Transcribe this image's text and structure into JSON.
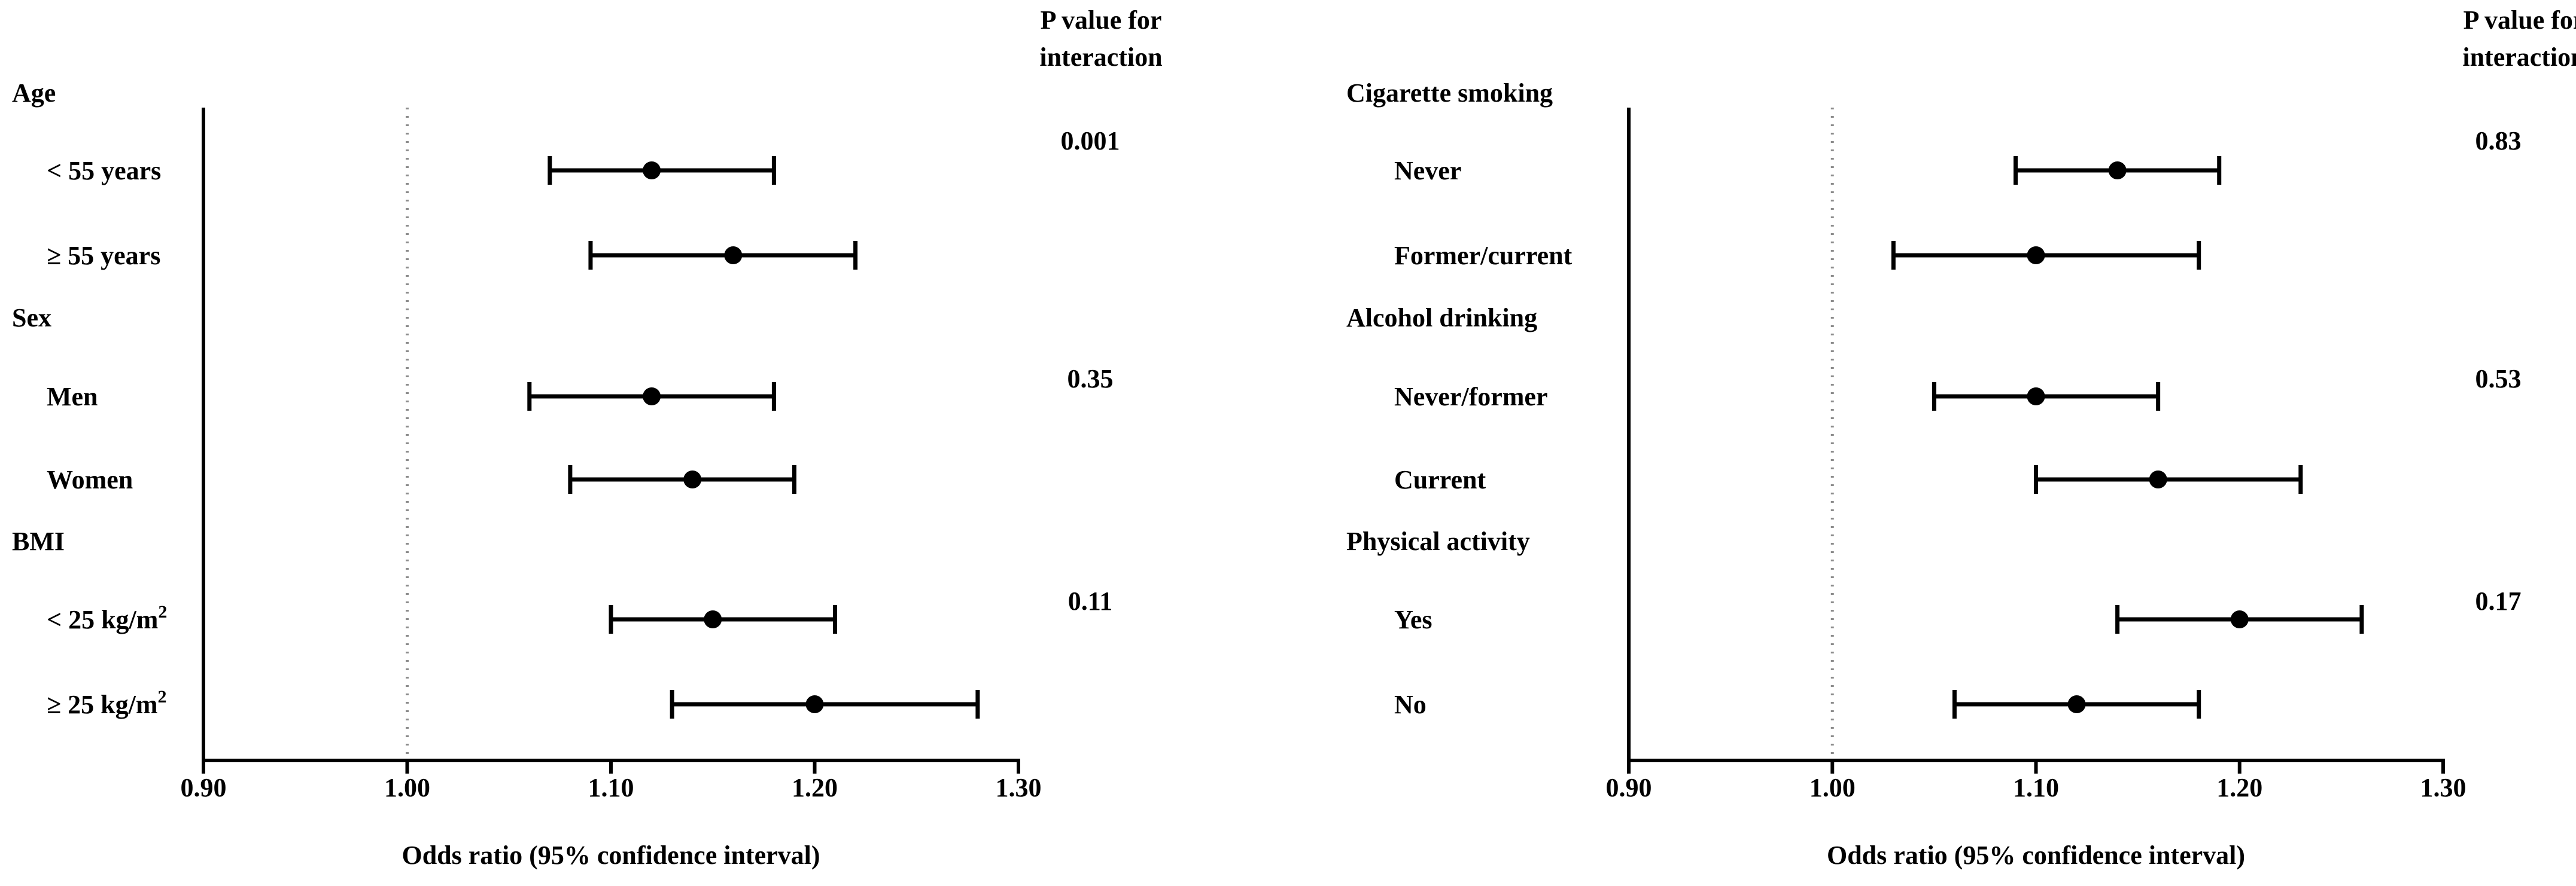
{
  "colors": {
    "ink": "#000000",
    "reference_line": "#8c8c8c",
    "background": "#ffffff"
  },
  "chart_data": [
    {
      "type": "forest",
      "xlabel": "Odds ratio (95% confidence interval)",
      "xlim": [
        0.9,
        1.3
      ],
      "xticks": [
        "0.90",
        "1.00",
        "1.10",
        "1.20",
        "1.30"
      ],
      "reference_line": 1.0,
      "pvalue_header": [
        "P value for",
        "interaction"
      ],
      "groups": [
        {
          "label": "Age",
          "pvalue": "0.001",
          "rows": [
            {
              "label": "< 55 years",
              "or": 1.12,
              "lo": 1.07,
              "hi": 1.18
            },
            {
              "label": "≥ 55 years",
              "or": 1.16,
              "lo": 1.09,
              "hi": 1.22
            }
          ]
        },
        {
          "label": "Sex",
          "pvalue": "0.35",
          "rows": [
            {
              "label": "Men",
              "or": 1.12,
              "lo": 1.06,
              "hi": 1.18
            },
            {
              "label": "Women",
              "or": 1.14,
              "lo": 1.08,
              "hi": 1.19
            }
          ]
        },
        {
          "label": "BMI",
          "pvalue": "0.11",
          "rows": [
            {
              "label": "< 25 kg/m",
              "sup": "2",
              "or": 1.15,
              "lo": 1.1,
              "hi": 1.21
            },
            {
              "label": "≥ 25 kg/m",
              "sup": "2",
              "or": 1.2,
              "lo": 1.13,
              "hi": 1.28
            }
          ]
        }
      ]
    },
    {
      "type": "forest",
      "xlabel": "Odds ratio (95% confidence interval)",
      "xlim": [
        0.9,
        1.3
      ],
      "xticks": [
        "0.90",
        "1.00",
        "1.10",
        "1.20",
        "1.30"
      ],
      "reference_line": 1.0,
      "pvalue_header": [
        "P value for",
        "interaction"
      ],
      "groups": [
        {
          "label": "Cigarette smoking",
          "pvalue": "0.83",
          "rows": [
            {
              "label": "Never",
              "or": 1.14,
              "lo": 1.09,
              "hi": 1.19
            },
            {
              "label": "Former/current",
              "or": 1.1,
              "lo": 1.03,
              "hi": 1.18
            }
          ]
        },
        {
          "label": "Alcohol drinking",
          "pvalue": "0.53",
          "rows": [
            {
              "label": "Never/former",
              "or": 1.1,
              "lo": 1.05,
              "hi": 1.16
            },
            {
              "label": "Current",
              "or": 1.16,
              "lo": 1.1,
              "hi": 1.23
            }
          ]
        },
        {
          "label": "Physical activity",
          "pvalue": "0.17",
          "rows": [
            {
              "label": "Yes",
              "or": 1.2,
              "lo": 1.14,
              "hi": 1.26
            },
            {
              "label": "No",
              "or": 1.12,
              "lo": 1.06,
              "hi": 1.18
            }
          ]
        }
      ]
    }
  ]
}
